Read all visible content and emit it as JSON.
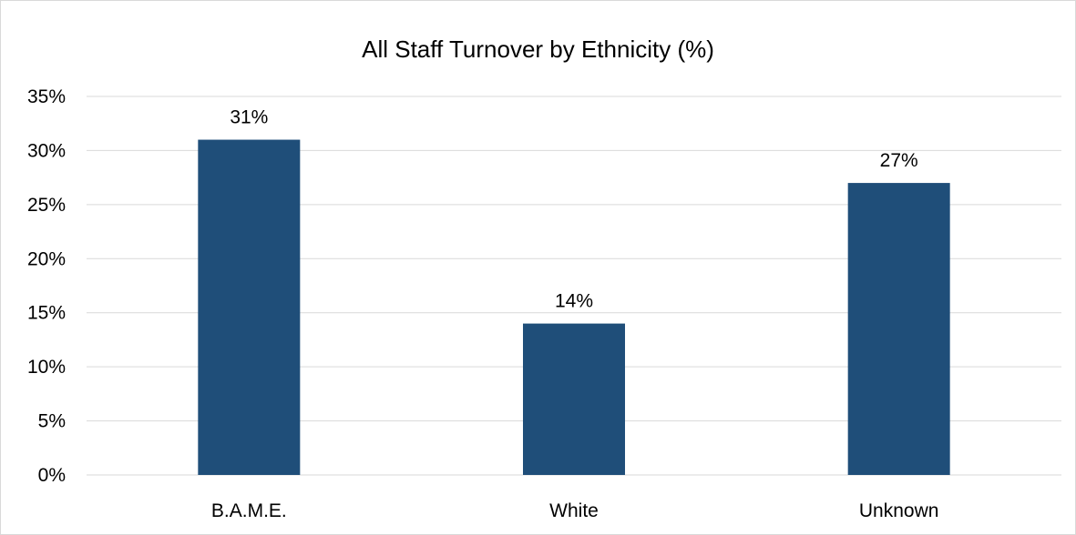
{
  "chart_data": {
    "type": "bar",
    "title": "All Staff Turnover by Ethnicity (%)",
    "xlabel": "",
    "ylabel": "",
    "categories": [
      "B.A.M.E.",
      "White",
      "Unknown"
    ],
    "values": [
      31,
      14,
      27
    ],
    "value_labels": [
      "31%",
      "14%",
      "27%"
    ],
    "ylim": [
      0,
      35
    ],
    "yticks": [
      0,
      5,
      10,
      15,
      20,
      25,
      30,
      35
    ],
    "ytick_labels": [
      "0%",
      "5%",
      "10%",
      "15%",
      "20%",
      "25%",
      "30%",
      "35%"
    ],
    "grid": true,
    "legend": "none",
    "bar_color": "#1f4e79",
    "gridline_color": "#d9d9d9"
  }
}
